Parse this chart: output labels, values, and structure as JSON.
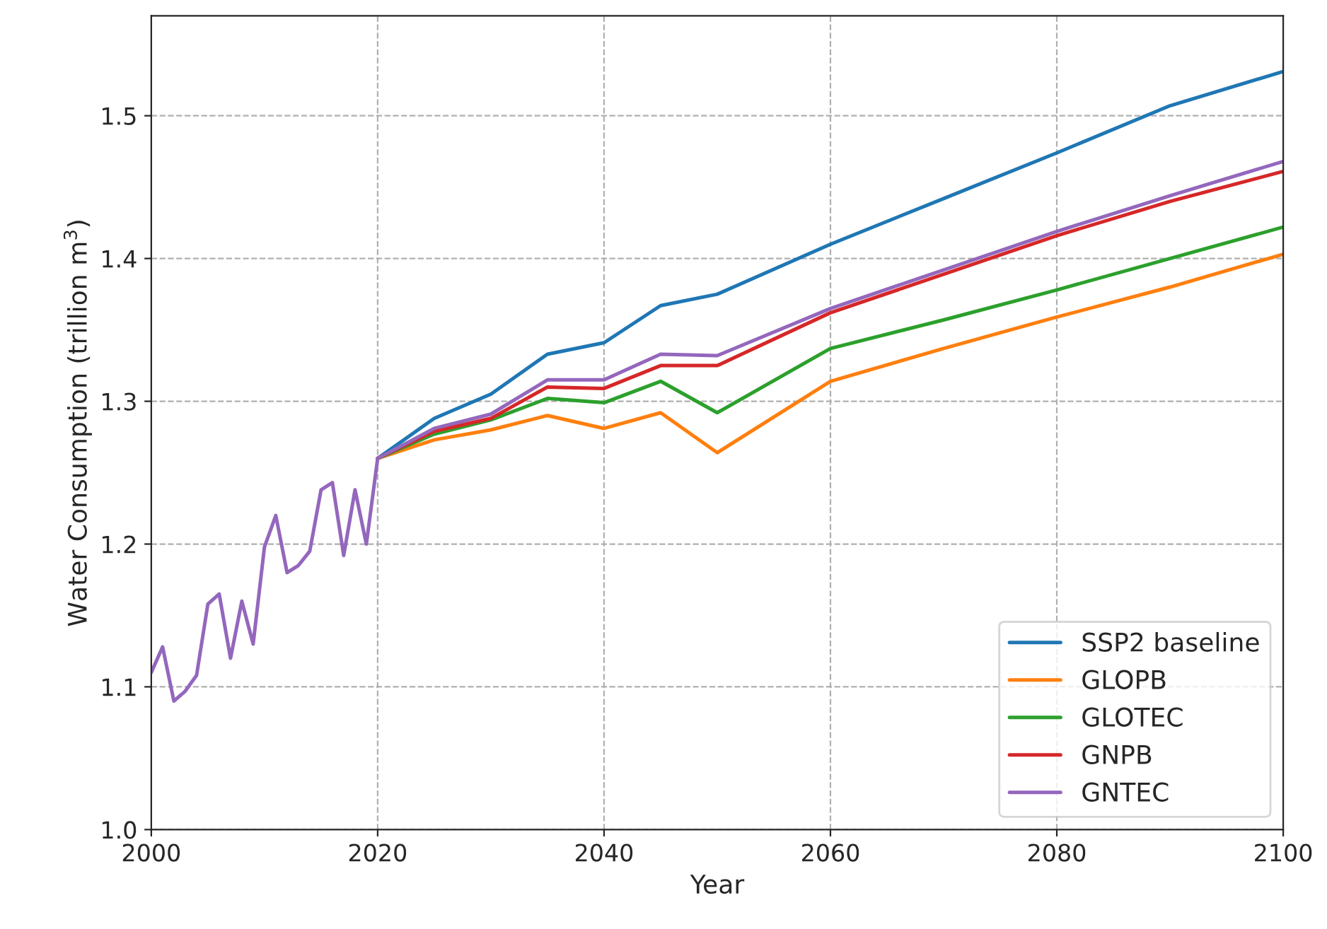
{
  "chart_data": {
    "type": "line",
    "xlabel": "Year",
    "ylabel": "Water Consumption (trillion m$^{3}$)",
    "x": [
      2000,
      2001,
      2002,
      2003,
      2004,
      2005,
      2006,
      2007,
      2008,
      2009,
      2010,
      2011,
      2012,
      2013,
      2014,
      2015,
      2016,
      2017,
      2018,
      2019,
      2020,
      2025,
      2030,
      2035,
      2040,
      2045,
      2050,
      2060,
      2070,
      2080,
      2090,
      2100
    ],
    "series": [
      {
        "name": "SSP2 baseline",
        "color": "#1f77b4",
        "values": [
          null,
          null,
          null,
          null,
          null,
          null,
          null,
          null,
          null,
          null,
          null,
          null,
          null,
          null,
          null,
          null,
          null,
          null,
          null,
          null,
          1.26,
          1.288,
          1.305,
          1.333,
          1.341,
          1.367,
          1.375,
          1.41,
          1.442,
          1.474,
          1.507,
          1.531
        ]
      },
      {
        "name": "GLOPB",
        "color": "#ff7f0e",
        "values": [
          null,
          null,
          null,
          null,
          null,
          null,
          null,
          null,
          null,
          null,
          null,
          null,
          null,
          null,
          null,
          null,
          null,
          null,
          null,
          null,
          1.26,
          1.273,
          1.28,
          1.29,
          1.281,
          1.292,
          1.264,
          1.314,
          1.337,
          1.359,
          1.38,
          1.403
        ]
      },
      {
        "name": "GLOTEC",
        "color": "#2ca02c",
        "values": [
          null,
          null,
          null,
          null,
          null,
          null,
          null,
          null,
          null,
          null,
          null,
          null,
          null,
          null,
          null,
          null,
          null,
          null,
          null,
          null,
          1.26,
          1.277,
          1.287,
          1.302,
          1.299,
          1.314,
          1.292,
          1.337,
          1.357,
          1.378,
          1.4,
          1.422
        ]
      },
      {
        "name": "GNPB",
        "color": "#d62728",
        "values": [
          null,
          null,
          null,
          null,
          null,
          null,
          null,
          null,
          null,
          null,
          null,
          null,
          null,
          null,
          null,
          null,
          null,
          null,
          null,
          null,
          1.26,
          1.279,
          1.288,
          1.31,
          1.309,
          1.325,
          1.325,
          1.362,
          1.389,
          1.416,
          1.44,
          1.461
        ]
      },
      {
        "name": "GNTEC",
        "color": "#9467bd",
        "values": [
          1.11,
          1.128,
          1.09,
          1.097,
          1.108,
          1.158,
          1.165,
          1.12,
          1.16,
          1.13,
          1.198,
          1.22,
          1.18,
          1.185,
          1.195,
          1.238,
          1.243,
          1.192,
          1.238,
          1.2,
          1.26,
          1.281,
          1.291,
          1.315,
          1.315,
          1.333,
          1.332,
          1.365,
          1.392,
          1.419,
          1.444,
          1.468
        ]
      }
    ],
    "xlim": [
      2000,
      2100
    ],
    "xticks": [
      2000,
      2020,
      2040,
      2060,
      2080,
      2100
    ],
    "ylim": [
      1.0,
      1.57
    ],
    "yticks": [
      {
        "value": 1.0,
        "label": "1.0"
      },
      1.1,
      1.2,
      1.3,
      1.4,
      1.5
    ],
    "grid": true,
    "legend": "bottom right",
    "line_style": "solid",
    "marker": "none"
  }
}
